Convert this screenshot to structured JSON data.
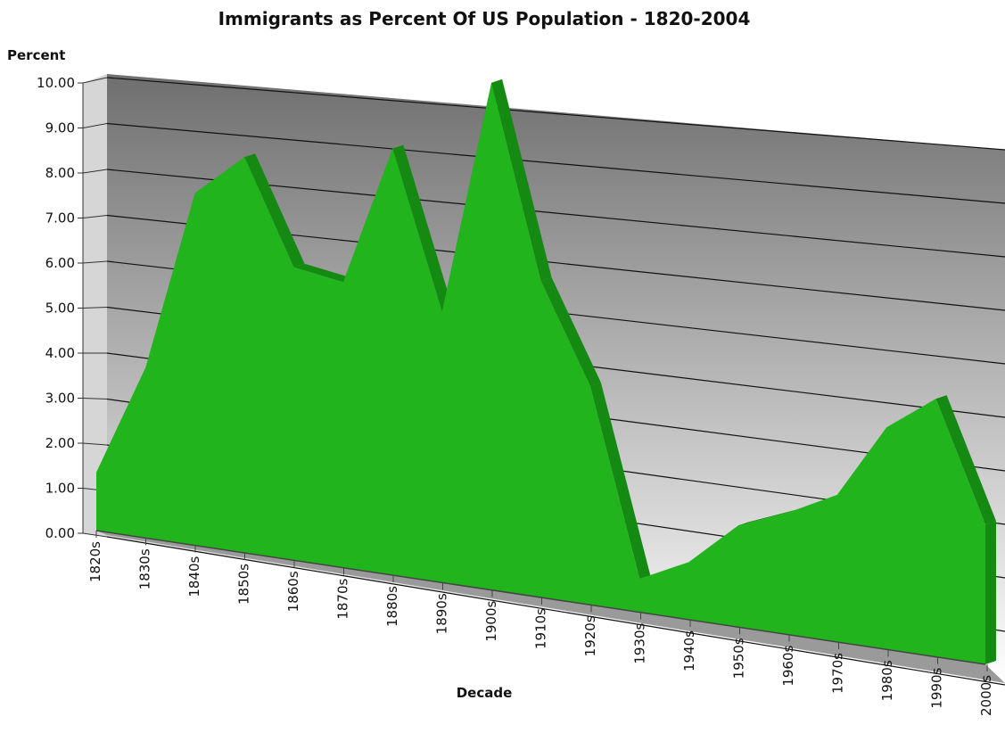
{
  "chart_data": {
    "type": "area",
    "title": "Immigrants as Percent Of US Population - 1820-2004",
    "xlabel": "Decade",
    "ylabel": "Percent",
    "categories": [
      "1820s",
      "1830s",
      "1840s",
      "1850s",
      "1860s",
      "1870s",
      "1880s",
      "1890s",
      "1900s",
      "1910s",
      "1920s",
      "1930s",
      "1940s",
      "1950s",
      "1960s",
      "1970s",
      "1980s",
      "1990s",
      "2000s"
    ],
    "y_tick_labels": [
      "0.00",
      "1.00",
      "2.00",
      "3.00",
      "4.00",
      "5.00",
      "6.00",
      "7.00",
      "8.00",
      "9.00",
      "10.00"
    ],
    "ylim": [
      0,
      10
    ],
    "grid": true,
    "three_d": true,
    "series": [
      {
        "values": [
          1.3,
          3.8,
          7.8,
          8.7,
          6.4,
          6.2,
          9.2,
          5.8,
          10.8,
          6.7,
          4.6,
          0.7,
          1.2,
          2.1,
          2.5,
          3.0,
          4.5,
          5.2,
          2.8
        ],
        "color": "#22b41c"
      }
    ],
    "colors": {
      "area": "#22b41c",
      "area_edge": "#158a12",
      "wall_top": "#6f6f6f",
      "wall_bottom": "#ffffff",
      "floor": "#9a9a9a"
    }
  }
}
